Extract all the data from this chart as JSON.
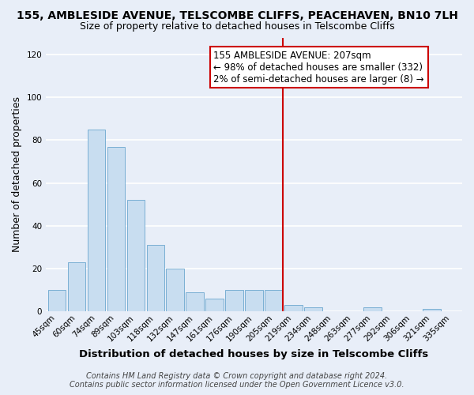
{
  "title1": "155, AMBLESIDE AVENUE, TELSCOMBE CLIFFS, PEACEHAVEN, BN10 7LH",
  "title2": "Size of property relative to detached houses in Telscombe Cliffs",
  "xlabel": "Distribution of detached houses by size in Telscombe Cliffs",
  "ylabel": "Number of detached properties",
  "bar_labels": [
    "45sqm",
    "60sqm",
    "74sqm",
    "89sqm",
    "103sqm",
    "118sqm",
    "132sqm",
    "147sqm",
    "161sqm",
    "176sqm",
    "190sqm",
    "205sqm",
    "219sqm",
    "234sqm",
    "248sqm",
    "263sqm",
    "277sqm",
    "292sqm",
    "306sqm",
    "321sqm",
    "335sqm"
  ],
  "bar_values": [
    10,
    23,
    85,
    77,
    52,
    31,
    20,
    9,
    6,
    10,
    10,
    10,
    3,
    2,
    0,
    0,
    2,
    0,
    0,
    1,
    0
  ],
  "bar_color": "#c8ddf0",
  "bar_edge_color": "#7aafd4",
  "marker_index": 11,
  "marker_color": "#cc0000",
  "ylim": [
    0,
    128
  ],
  "yticks": [
    0,
    20,
    40,
    60,
    80,
    100,
    120
  ],
  "annotation_title": "155 AMBLESIDE AVENUE: 207sqm",
  "annotation_line1": "← 98% of detached houses are smaller (332)",
  "annotation_line2": "2% of semi-detached houses are larger (8) →",
  "footer1": "Contains HM Land Registry data © Crown copyright and database right 2024.",
  "footer2": "Contains public sector information licensed under the Open Government Licence v3.0.",
  "background_color": "#e8eef8",
  "grid_color": "#ffffff",
  "title_fontsize": 10,
  "subtitle_fontsize": 9,
  "axis_label_fontsize": 9,
  "tick_fontsize": 7.5,
  "annotation_fontsize": 8.5,
  "footer_fontsize": 7
}
